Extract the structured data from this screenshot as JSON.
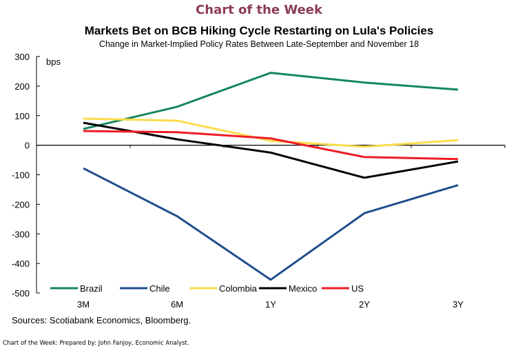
{
  "header": "Chart of the Week",
  "sources": "Sources: Scotiabank Economics, Bloomberg.",
  "footer": "Chart of the Week: Prepared by: John Fanjoy, Economic Analyst.",
  "chart_data": {
    "type": "line",
    "title": "Markets Bet on BCB Hiking Cycle Restarting on Lula's Policies",
    "subtitle": "Change in Market-Implied Policy Rates Between Late-September and November 18",
    "ylabel": "bps",
    "ylim": [
      -500,
      300
    ],
    "yticks": [
      300,
      200,
      100,
      0,
      -100,
      -200,
      -300,
      -400,
      -500
    ],
    "categories": [
      "3M",
      "6M",
      "1Y",
      "2Y",
      "3Y"
    ],
    "legend_position": "bottom",
    "grid": false,
    "series": [
      {
        "name": "Brazil",
        "color": "#13875a",
        "values": [
          55,
          130,
          245,
          212,
          188
        ]
      },
      {
        "name": "Chile",
        "color": "#1f4e8c",
        "values": [
          -78,
          -240,
          -455,
          -230,
          -135
        ]
      },
      {
        "name": "Colombia",
        "color": "#f9dc4a",
        "values": [
          90,
          83,
          15,
          -5,
          17
        ]
      },
      {
        "name": "Mexico",
        "color": "#000000",
        "values": [
          76,
          20,
          -25,
          -110,
          -55
        ]
      },
      {
        "name": "US",
        "color": "#ee1c25",
        "values": [
          48,
          44,
          23,
          -40,
          -47
        ]
      }
    ]
  }
}
